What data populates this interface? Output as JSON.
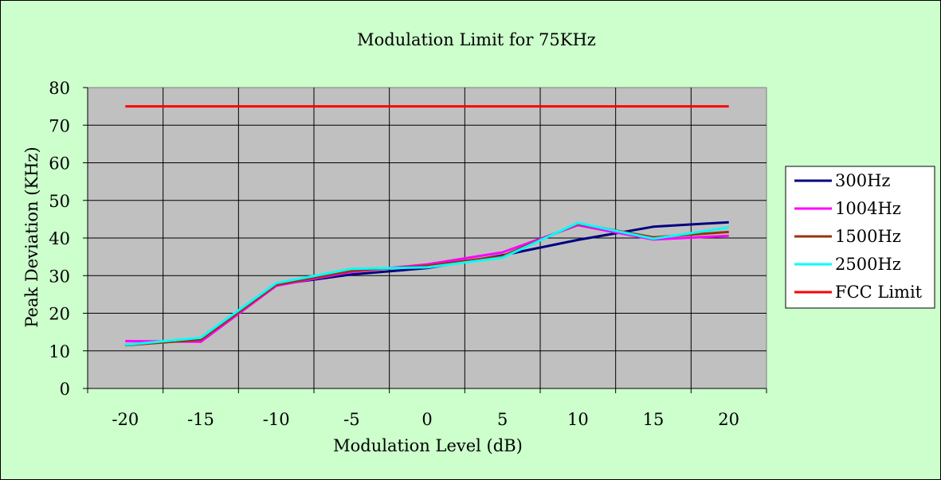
{
  "chart_data": {
    "type": "line",
    "title": "Modulation Limit for 75KHz",
    "xlabel": "Modulation Level (dB)",
    "ylabel": "Peak Deviation (KHz)",
    "x": [
      -20,
      -15,
      -10,
      -5,
      0,
      5,
      10,
      15,
      20
    ],
    "xticks": [
      "-20",
      "-15",
      "-10",
      "-5",
      "0",
      "5",
      "10",
      "15",
      "20"
    ],
    "yticks": [
      "0",
      "10",
      "20",
      "30",
      "40",
      "50",
      "60",
      "70",
      "80"
    ],
    "ylim": [
      0,
      80
    ],
    "grid": true,
    "legend_position": "right",
    "plot_background": "#c0c0c0",
    "page_background": "#ccffcc",
    "series": [
      {
        "name": "300Hz",
        "color": "#000080",
        "values": [
          11.6,
          13.0,
          27.6,
          30.3,
          32.0,
          35.4,
          39.5,
          43.0,
          44.2
        ]
      },
      {
        "name": "1004Hz",
        "color": "#ff00ff",
        "values": [
          12.6,
          12.4,
          27.3,
          31.0,
          33.0,
          36.2,
          43.4,
          39.6,
          40.6
        ]
      },
      {
        "name": "1500Hz",
        "color": "#993300",
        "values": [
          11.5,
          13.0,
          27.6,
          31.3,
          32.6,
          35.2,
          43.8,
          40.2,
          41.6
        ]
      },
      {
        "name": "2500Hz",
        "color": "#00ffff",
        "values": [
          11.6,
          13.5,
          28.0,
          31.8,
          32.2,
          34.8,
          44.0,
          39.8,
          42.8
        ]
      },
      {
        "name": "FCC Limit",
        "color": "#ff0000",
        "values": [
          75,
          75,
          75,
          75,
          75,
          75,
          75,
          75,
          75
        ]
      }
    ]
  }
}
